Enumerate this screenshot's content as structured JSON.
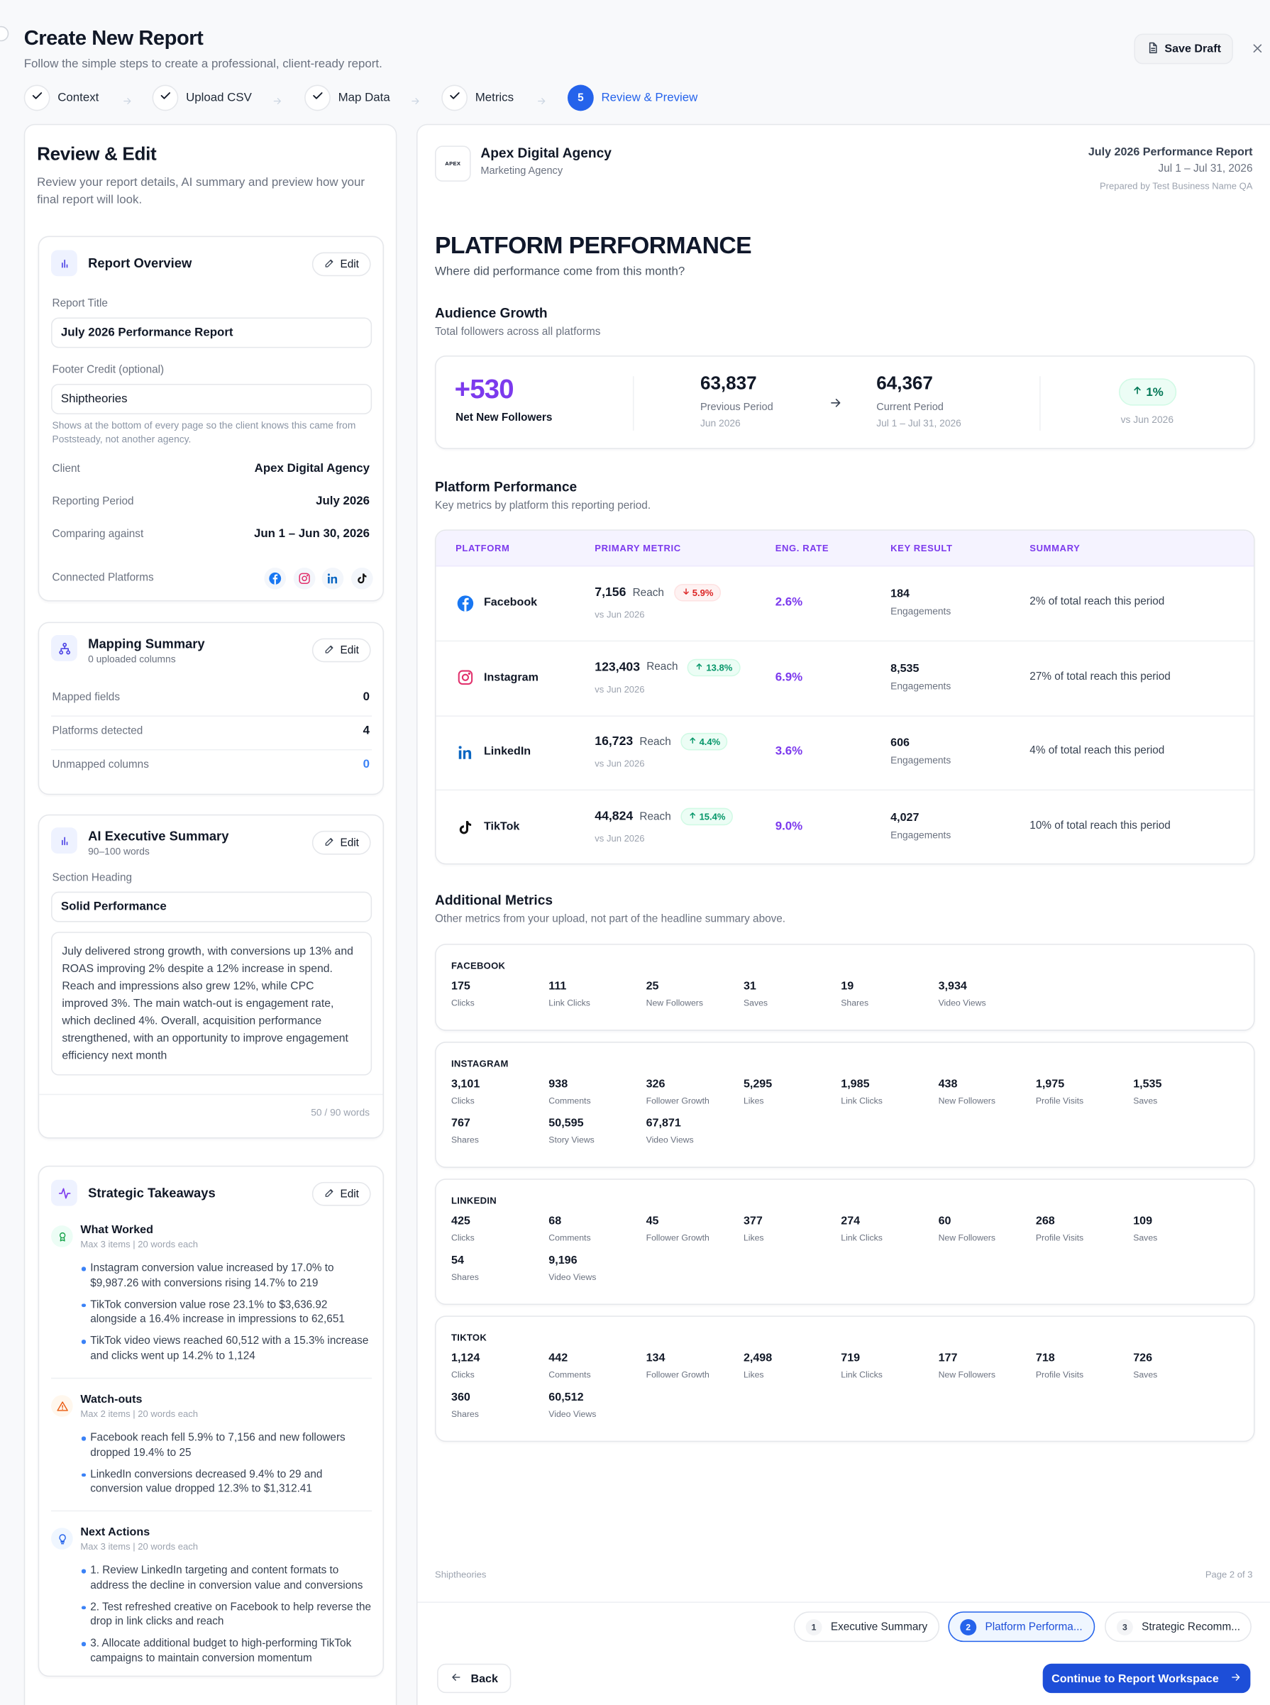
{
  "header": {
    "title": "Create New Report",
    "subtitle": "Follow the simple steps to create a professional, client-ready report.",
    "save_draft": "Save Draft"
  },
  "steps": [
    {
      "label": "Context"
    },
    {
      "label": "Upload CSV"
    },
    {
      "label": "Map Data"
    },
    {
      "label": "Metrics"
    },
    {
      "number": 5,
      "label": "Review & Preview"
    }
  ],
  "left": {
    "title": "Review & Edit",
    "description": "Review your report details, AI summary and preview how your final report will look.",
    "overview": {
      "title": "Report Overview",
      "edit": "Edit",
      "report_title_label": "Report Title",
      "report_title": "July 2026 Performance Report",
      "footer_label": "Footer Credit (optional)",
      "footer_value": "Shiptheories",
      "footer_help": "Shows at the bottom of every page so the client knows this came from Poststeady, not another agency.",
      "rows": [
        [
          "Client",
          "Apex Digital Agency"
        ],
        [
          "Reporting Period",
          "July 2026"
        ],
        [
          "Comparing against",
          "Jun 1 – Jun 30, 2026"
        ]
      ],
      "platforms_label": "Connected Platforms"
    },
    "mapping": {
      "title": "Mapping Summary",
      "subtitle": "0 uploaded columns",
      "edit": "Edit",
      "rows": [
        [
          "Mapped fields",
          "0"
        ],
        [
          "Platforms detected",
          "4"
        ],
        [
          "Unmapped columns",
          "0"
        ]
      ]
    },
    "ai_summary": {
      "title": "AI Executive Summary",
      "subtitle": "90–100 words",
      "edit": "Edit",
      "heading_label": "Section Heading",
      "heading": "Solid Performance",
      "text": "July delivered strong growth, with conversions up 13% and ROAS improving 2% despite a 12% increase in spend. Reach and impressions also grew 12%, while CPC improved 3%. The main watch-out is engagement rate, which declined 4%. Overall, acquisition performance strengthened, with an opportunity to improve engagement efficiency next month",
      "word_count": "50 / 90 words"
    },
    "takeaways": {
      "title": "Strategic Takeaways",
      "edit": "Edit",
      "groups": [
        {
          "title": "What Worked",
          "meta": "Max 3 items | 20 words each",
          "items": [
            "Instagram conversion value increased by 17.0% to $9,987.26 with conversions rising 14.7% to 219",
            "TikTok conversion value rose 23.1% to $3,636.92 alongside a 16.4% increase in impressions to 62,651",
            "TikTok video views reached 60,512 with a 15.3% increase and clicks went up 14.2% to 1,124"
          ]
        },
        {
          "title": "Watch-outs",
          "meta": "Max 2 items | 20 words each",
          "items": [
            "Facebook reach fell 5.9% to 7,156 and new followers dropped 19.4% to 25",
            "LinkedIn conversions decreased 9.4% to 29 and conversion value dropped 12.3% to $1,312.41"
          ]
        },
        {
          "title": "Next Actions",
          "meta": "Max 3 items | 20 words each",
          "items": [
            "1. Review LinkedIn targeting and content formats to address the decline in conversion value and conversions",
            "2. Test refreshed creative on Facebook to help reverse the drop in link clicks and reach",
            "3. Allocate additional budget to high-performing TikTok campaigns to maintain conversion momentum"
          ]
        }
      ]
    }
  },
  "report": {
    "brand": {
      "logo": "APEX",
      "name": "Apex Digital Agency",
      "type": "Marketing Agency"
    },
    "meta": {
      "title": "July 2026 Performance Report",
      "period": "Jul 1 – Jul 31, 2026",
      "prepared_by": "Prepared by Test Business Name QA"
    },
    "section_title": "PLATFORM PERFORMANCE",
    "question": "Where did performance come from this month?",
    "audience": {
      "title": "Audience Growth",
      "subtitle": "Total followers across all platforms",
      "net": "+530",
      "net_label": "Net New Followers",
      "previous": "63,837",
      "previous_label": "Previous Period",
      "previous_period": "Jun 2026",
      "current": "64,367",
      "current_label": "Current Period",
      "current_period": "Jul 1 – Jul 31, 2026",
      "change": "1%",
      "change_label": "vs Jun 2026"
    },
    "platforms": {
      "title": "Platform Performance",
      "subtitle": "Key metrics by platform this reporting period.",
      "columns": [
        "PLATFORM",
        "PRIMARY METRIC",
        "ENG. RATE",
        "KEY RESULT",
        "SUMMARY"
      ],
      "rows": [
        {
          "name": "Facebook",
          "metric": "7,156",
          "metric_label": "Reach",
          "change": "5.9%",
          "direction": "down",
          "compare": "vs Jun 2026",
          "eng_rate": "2.6%",
          "key": "184",
          "key_label": "Engagements",
          "summary": "2% of total reach this period"
        },
        {
          "name": "Instagram",
          "metric": "123,403",
          "metric_label": "Reach",
          "change": "13.8%",
          "direction": "up",
          "compare": "vs Jun 2026",
          "eng_rate": "6.9%",
          "key": "8,535",
          "key_label": "Engagements",
          "summary": "27% of total reach this period"
        },
        {
          "name": "LinkedIn",
          "metric": "16,723",
          "metric_label": "Reach",
          "change": "4.4%",
          "direction": "up",
          "compare": "vs Jun 2026",
          "eng_rate": "3.6%",
          "key": "606",
          "key_label": "Engagements",
          "summary": "4% of total reach this period"
        },
        {
          "name": "TikTok",
          "metric": "44,824",
          "metric_label": "Reach",
          "change": "15.4%",
          "direction": "up",
          "compare": "vs Jun 2026",
          "eng_rate": "9.0%",
          "key": "4,027",
          "key_label": "Engagements",
          "summary": "10% of total reach this period"
        }
      ]
    },
    "additional": {
      "title": "Additional Metrics",
      "subtitle": "Other metrics from your upload, not part of the headline summary above.",
      "groups": [
        {
          "name": "FACEBOOK",
          "metrics": [
            {
              "value": "175",
              "label": "Clicks"
            },
            {
              "value": "111",
              "label": "Link Clicks"
            },
            {
              "value": "25",
              "label": "New Followers"
            },
            {
              "value": "31",
              "label": "Saves"
            },
            {
              "value": "19",
              "label": "Shares"
            },
            {
              "value": "3,934",
              "label": "Video Views"
            }
          ]
        },
        {
          "name": "INSTAGRAM",
          "metrics": [
            {
              "value": "3,101",
              "label": "Clicks"
            },
            {
              "value": "938",
              "label": "Comments"
            },
            {
              "value": "326",
              "label": "Follower Growth"
            },
            {
              "value": "5,295",
              "label": "Likes"
            },
            {
              "value": "1,985",
              "label": "Link Clicks"
            },
            {
              "value": "438",
              "label": "New Followers"
            },
            {
              "value": "1,975",
              "label": "Profile Visits"
            },
            {
              "value": "1,535",
              "label": "Saves"
            },
            {
              "value": "767",
              "label": "Shares"
            },
            {
              "value": "50,595",
              "label": "Story Views"
            },
            {
              "value": "67,871",
              "label": "Video Views"
            }
          ]
        },
        {
          "name": "LINKEDIN",
          "metrics": [
            {
              "value": "425",
              "label": "Clicks"
            },
            {
              "value": "68",
              "label": "Comments"
            },
            {
              "value": "45",
              "label": "Follower Growth"
            },
            {
              "value": "377",
              "label": "Likes"
            },
            {
              "value": "274",
              "label": "Link Clicks"
            },
            {
              "value": "60",
              "label": "New Followers"
            },
            {
              "value": "268",
              "label": "Profile Visits"
            },
            {
              "value": "109",
              "label": "Saves"
            },
            {
              "value": "54",
              "label": "Shares"
            },
            {
              "value": "9,196",
              "label": "Video Views"
            }
          ]
        },
        {
          "name": "TIKTOK",
          "metrics": [
            {
              "value": "1,124",
              "label": "Clicks"
            },
            {
              "value": "442",
              "label": "Comments"
            },
            {
              "value": "134",
              "label": "Follower Growth"
            },
            {
              "value": "2,498",
              "label": "Likes"
            },
            {
              "value": "719",
              "label": "Link Clicks"
            },
            {
              "value": "177",
              "label": "New Followers"
            },
            {
              "value": "718",
              "label": "Profile Visits"
            },
            {
              "value": "726",
              "label": "Saves"
            },
            {
              "value": "360",
              "label": "Shares"
            },
            {
              "value": "60,512",
              "label": "Video Views"
            }
          ]
        }
      ]
    },
    "footer": {
      "credit": "Shiptheories",
      "page": "Page 2 of 3"
    },
    "tabs": [
      {
        "number": 1,
        "label": "Executive Summary"
      },
      {
        "number": 2,
        "label": "Platform Performa...",
        "active": true
      },
      {
        "number": 3,
        "label": "Strategic Recomm..."
      }
    ],
    "back": "Back",
    "continue": "Continue to Report Workspace"
  }
}
